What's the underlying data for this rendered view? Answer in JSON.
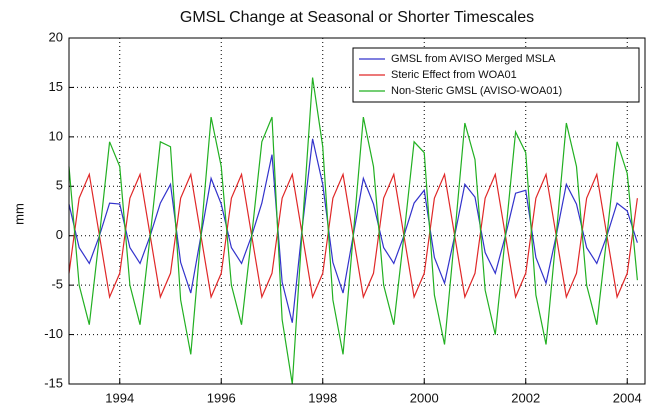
{
  "chart_data": {
    "type": "line",
    "title": "GMSL Change at Seasonal or Shorter Timescales",
    "y_label": "mm",
    "x": [
      1993,
      1993.2,
      1993.4,
      1993.6,
      1993.8,
      1994,
      1994.2,
      1994.4,
      1994.6,
      1994.8,
      1995,
      1995.2,
      1995.4,
      1995.6,
      1995.8,
      1996,
      1996.2,
      1996.4,
      1996.6,
      1996.8,
      1997,
      1997.2,
      1997.4,
      1997.6,
      1997.8,
      1998,
      1998.2,
      1998.4,
      1998.6,
      1998.8,
      1999,
      1999.2,
      1999.4,
      1999.6,
      1999.8,
      2000,
      2000.2,
      2000.4,
      2000.6,
      2000.8,
      2001,
      2001.2,
      2001.4,
      2001.6,
      2001.8,
      2002,
      2002.2,
      2002.4,
      2002.6,
      2002.8,
      2003,
      2003.2,
      2003.4,
      2003.6,
      2003.8,
      2004,
      2004.2
    ],
    "series": [
      {
        "name": "GMSL from AVISO Merged MSLA",
        "color": "#3333cc",
        "values": [
          3.2,
          -1.2,
          -2.8,
          0,
          3.3,
          3.2,
          -1.2,
          -2.8,
          0,
          3.3,
          5.2,
          -2.7,
          -5.8,
          0,
          5.8,
          3.2,
          -1.2,
          -2.8,
          0,
          3.3,
          8.2,
          -4.7,
          -8.8,
          1,
          9.8,
          5.2,
          -2.7,
          -5.8,
          0,
          5.8,
          3.2,
          -1.2,
          -2.8,
          0,
          3.3,
          4.6,
          -2.2,
          -4.8,
          0,
          5.2,
          3.9,
          -1.7,
          -3.8,
          0,
          4.3,
          4.6,
          -2.2,
          -4.8,
          0,
          5.2,
          3.2,
          -1.2,
          -2.8,
          0,
          3.3,
          2.5,
          -0.7
        ]
      },
      {
        "name": "Steric Effect from WOA01",
        "color": "#e02828",
        "values": [
          -3.8,
          3.8,
          6.2,
          0,
          -6.2,
          -3.8,
          3.8,
          6.2,
          0,
          -6.2,
          -3.8,
          3.8,
          6.2,
          0,
          -6.2,
          -3.8,
          3.8,
          6.2,
          0,
          -6.2,
          -3.8,
          3.8,
          6.2,
          0,
          -6.2,
          -3.8,
          3.8,
          6.2,
          0,
          -6.2,
          -3.8,
          3.8,
          6.2,
          0,
          -6.2,
          -3.8,
          3.8,
          6.2,
          0,
          -6.2,
          -3.8,
          3.8,
          6.2,
          0,
          -6.2,
          -3.8,
          3.8,
          6.2,
          0,
          -6.2,
          -3.8,
          3.8,
          6.2,
          0,
          -6.2,
          -3.8,
          3.8
        ]
      },
      {
        "name": "Non-Steric GMSL (AVISO-WOA01)",
        "color": "#22b022",
        "values": [
          7,
          -5,
          -9,
          0,
          9.5,
          7,
          -5,
          -9,
          0,
          9.5,
          9,
          -6.5,
          -12,
          0,
          12,
          7,
          -5,
          -9,
          0,
          9.5,
          12,
          -8.5,
          -15,
          1,
          16,
          9,
          -6.5,
          -12,
          0,
          12,
          7,
          -5,
          -9,
          0,
          9.5,
          8.4,
          -6,
          -11,
          0,
          11.4,
          7.7,
          -5.5,
          -10,
          0,
          10.5,
          8.4,
          -6,
          -11,
          0,
          11.4,
          7,
          -5,
          -9,
          0,
          9.5,
          6.3,
          -4.5
        ]
      }
    ],
    "xlim": [
      1993,
      2004.35
    ],
    "xticks": [
      1994,
      1996,
      1998,
      2000,
      2002,
      2004
    ],
    "ylim": [
      -15,
      20
    ],
    "yticks": [
      -15,
      -10,
      -5,
      0,
      5,
      10,
      15,
      20
    ],
    "grid": true,
    "legend": "upper right"
  }
}
